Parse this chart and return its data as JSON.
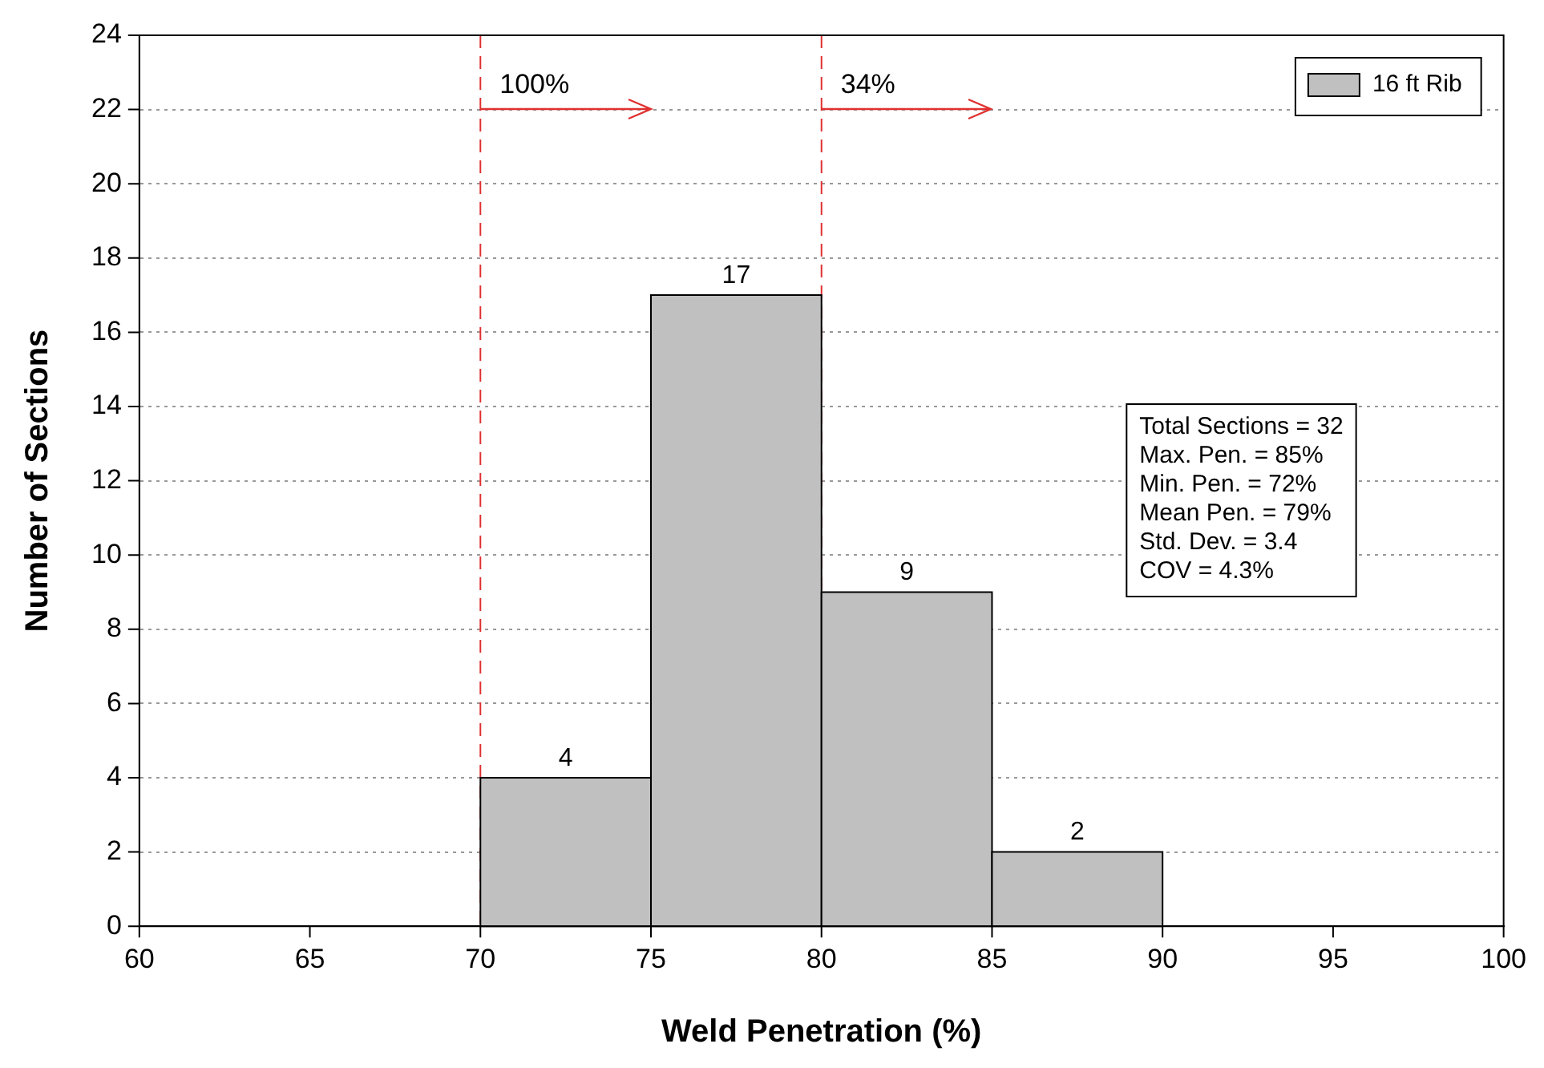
{
  "chart_data": {
    "type": "histogram",
    "xlabel": "Weld Penetration (%)",
    "ylabel": "Number of Sections",
    "bins": [
      70,
      75,
      80,
      85,
      90
    ],
    "series": [
      {
        "name": "16 ft Rib",
        "color": "#c0c0c0",
        "values": [
          4,
          17,
          9,
          2
        ]
      }
    ],
    "xlim": [
      60,
      100
    ],
    "xticks": [
      60,
      65,
      70,
      75,
      80,
      85,
      90,
      95,
      100
    ],
    "ylim": [
      0,
      24
    ],
    "yticks": [
      0,
      2,
      4,
      6,
      8,
      10,
      12,
      14,
      16,
      18,
      20,
      22,
      24
    ],
    "grid": "y",
    "legend": "top right",
    "data_labels": true,
    "ref_lines": [
      {
        "axis": "x",
        "value": 70,
        "color": "#e03030",
        "line_style": "dashed"
      },
      {
        "axis": "x",
        "value": 80,
        "color": "#e03030",
        "line_style": "dashed"
      }
    ],
    "annotations": [
      "100%",
      "34%",
      "Total Sections = 32",
      "Max. Pen. = 85%",
      "Min. Pen. = 72%",
      "Mean Pen. = 79%",
      "Std. Dev. = 3.4",
      "COV = 4.3%"
    ]
  }
}
